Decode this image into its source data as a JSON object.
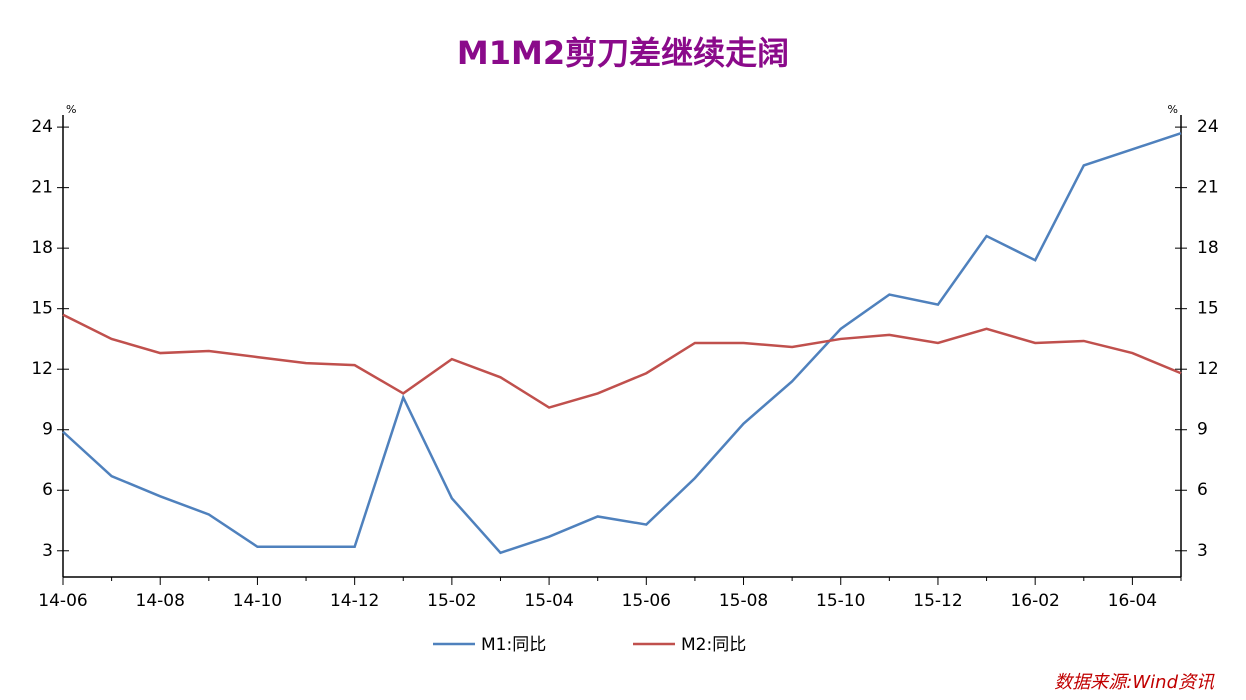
{
  "chart_data": {
    "type": "line",
    "title": "M1M2剪刀差继续走阔",
    "y_unit": "%",
    "y2_unit": "%",
    "source": "数据来源:Wind资讯",
    "categories": [
      "14-06",
      null,
      "14-08",
      null,
      "14-10",
      null,
      "14-12",
      null,
      "15-02",
      null,
      "15-04",
      null,
      "15-06",
      null,
      "15-08",
      null,
      "15-10",
      null,
      "15-12",
      null,
      "16-02",
      null,
      "16-04",
      null
    ],
    "series": [
      {
        "name": "M1:同比",
        "color": "#4f81bd",
        "values": [
          8.9,
          6.7,
          5.7,
          4.8,
          3.2,
          3.2,
          3.2,
          10.6,
          5.6,
          2.9,
          3.7,
          4.7,
          4.3,
          6.6,
          9.3,
          11.4,
          14.0,
          15.7,
          15.2,
          18.6,
          17.4,
          22.1,
          22.9,
          23.7
        ]
      },
      {
        "name": "M2:同比",
        "color": "#c0504d",
        "values": [
          14.7,
          13.5,
          12.8,
          12.9,
          12.6,
          12.3,
          12.2,
          10.8,
          12.5,
          11.6,
          10.1,
          10.8,
          11.8,
          13.3,
          13.3,
          13.1,
          13.5,
          13.7,
          13.3,
          14.0,
          13.3,
          13.4,
          12.8,
          11.8
        ]
      }
    ],
    "ylim": [
      1.7,
      24.6
    ],
    "yticks": [
      3,
      6,
      9,
      12,
      15,
      18,
      21,
      24
    ],
    "y2lim": [
      1.7,
      24.6
    ],
    "y2ticks": [
      3,
      6,
      9,
      12,
      15,
      18,
      21,
      24
    ],
    "grid": false,
    "legend": "bottom"
  }
}
